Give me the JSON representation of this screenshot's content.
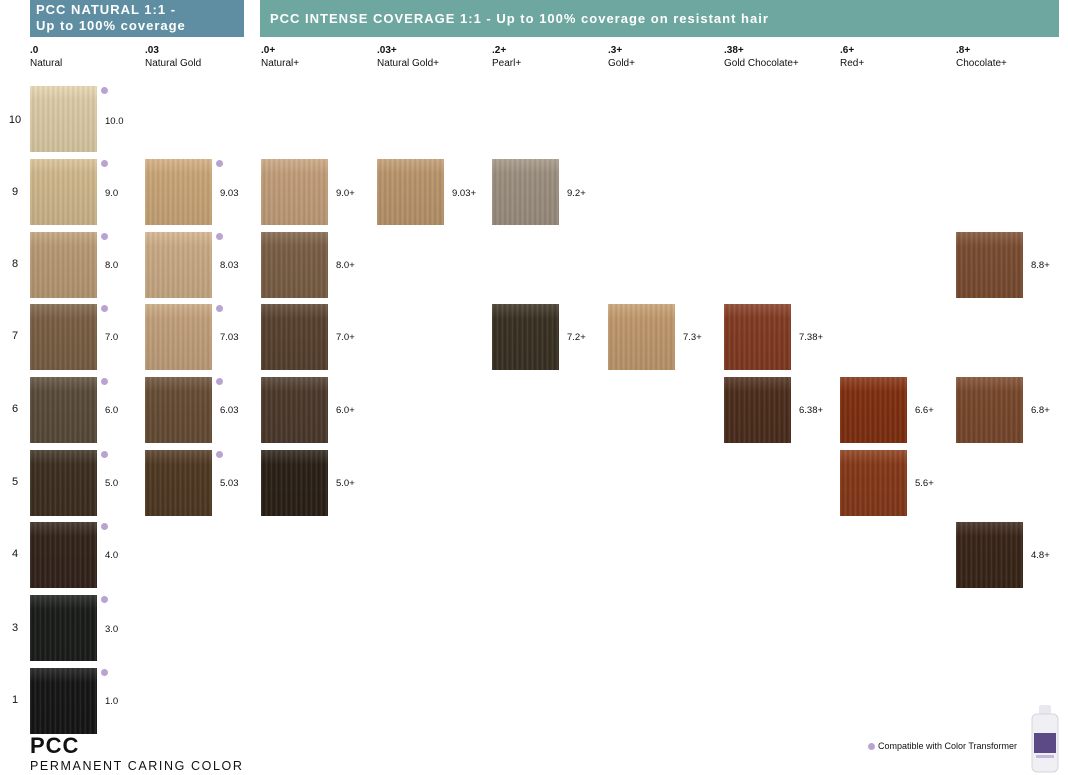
{
  "header": {
    "natural_banner_line1": "PCC NATURAL 1:1 -",
    "natural_banner_line2": "Up to 100% coverage",
    "intense_banner": "PCC INTENSE COVERAGE 1:1 - Up to 100% coverage on resistant hair"
  },
  "columns": [
    {
      "code": ".0",
      "name": "Natural"
    },
    {
      "code": ".03",
      "name": "Natural Gold"
    },
    {
      "code": ".0+",
      "name": "Natural+"
    },
    {
      "code": ".03+",
      "name": "Natural Gold+"
    },
    {
      "code": ".2+",
      "name": "Pearl+"
    },
    {
      "code": ".3+",
      "name": "Gold+"
    },
    {
      "code": ".38+",
      "name": "Gold Chocolate+"
    },
    {
      "code": ".6+",
      "name": "Red+"
    },
    {
      "code": ".8+",
      "name": "Chocolate+"
    }
  ],
  "rows": [
    "10",
    "9",
    "8",
    "7",
    "6",
    "5",
    "4",
    "3",
    "1"
  ],
  "swatches": [
    {
      "col": 0,
      "row": 0,
      "label": "10.0",
      "color": "#e6d3ad",
      "dot": true
    },
    {
      "col": 0,
      "row": 1,
      "label": "9.0",
      "color": "#d9bf92",
      "dot": true
    },
    {
      "col": 0,
      "row": 2,
      "label": "8.0",
      "color": "#c09f78",
      "dot": true
    },
    {
      "col": 0,
      "row": 3,
      "label": "7.0",
      "color": "#7e6245",
      "dot": true
    },
    {
      "col": 0,
      "row": 4,
      "label": "6.0",
      "color": "#5d4d3b",
      "dot": true
    },
    {
      "col": 0,
      "row": 5,
      "label": "5.0",
      "color": "#3e3020",
      "dot": true
    },
    {
      "col": 0,
      "row": 6,
      "label": "4.0",
      "color": "#34241a",
      "dot": true
    },
    {
      "col": 0,
      "row": 7,
      "label": "3.0",
      "color": "#1a1c1a",
      "dot": true
    },
    {
      "col": 0,
      "row": 8,
      "label": "1.0",
      "color": "#141514",
      "dot": true
    },
    {
      "col": 1,
      "row": 1,
      "label": "9.03",
      "color": "#d2ac7c",
      "dot": true
    },
    {
      "col": 1,
      "row": 2,
      "label": "8.03",
      "color": "#d2b18a",
      "dot": true
    },
    {
      "col": 1,
      "row": 3,
      "label": "7.03",
      "color": "#c9a67f",
      "dot": true
    },
    {
      "col": 1,
      "row": 4,
      "label": "6.03",
      "color": "#6a4f36",
      "dot": true
    },
    {
      "col": 1,
      "row": 5,
      "label": "5.03",
      "color": "#513a22",
      "dot": true
    },
    {
      "col": 2,
      "row": 1,
      "label": "9.0+",
      "color": "#c9a47e",
      "dot": false
    },
    {
      "col": 2,
      "row": 2,
      "label": "8.0+",
      "color": "#7f6247",
      "dot": false
    },
    {
      "col": 2,
      "row": 3,
      "label": "7.0+",
      "color": "#5b4330",
      "dot": false
    },
    {
      "col": 2,
      "row": 4,
      "label": "6.0+",
      "color": "#4e3b2c",
      "dot": false
    },
    {
      "col": 2,
      "row": 5,
      "label": "5.0+",
      "color": "#2b2016",
      "dot": false
    },
    {
      "col": 3,
      "row": 1,
      "label": "9.03+",
      "color": "#c19b70",
      "dot": false
    },
    {
      "col": 4,
      "row": 1,
      "label": "9.2+",
      "color": "#a29584",
      "dot": false
    },
    {
      "col": 4,
      "row": 3,
      "label": "7.2+",
      "color": "#3a3223",
      "dot": false
    },
    {
      "col": 5,
      "row": 3,
      "label": "7.3+",
      "color": "#c79e70",
      "dot": false
    },
    {
      "col": 6,
      "row": 3,
      "label": "7.38+",
      "color": "#863c22",
      "dot": false
    },
    {
      "col": 6,
      "row": 4,
      "label": "6.38+",
      "color": "#4e2e1c",
      "dot": false
    },
    {
      "col": 7,
      "row": 4,
      "label": "6.6+",
      "color": "#84300f",
      "dot": false
    },
    {
      "col": 7,
      "row": 5,
      "label": "5.6+",
      "color": "#8a3a18",
      "dot": false
    },
    {
      "col": 8,
      "row": 2,
      "label": "8.8+",
      "color": "#7e4f32",
      "dot": false
    },
    {
      "col": 8,
      "row": 4,
      "label": "6.8+",
      "color": "#7c4a2c",
      "dot": false
    },
    {
      "col": 8,
      "row": 6,
      "label": "4.8+",
      "color": "#3a2517",
      "dot": false
    }
  ],
  "footer": {
    "brand": "PCC",
    "brand_sub": "PERMANENT CARING COLOR",
    "legend": "Compatible with Color Transformer",
    "dot_color": "#b9a3d1"
  }
}
